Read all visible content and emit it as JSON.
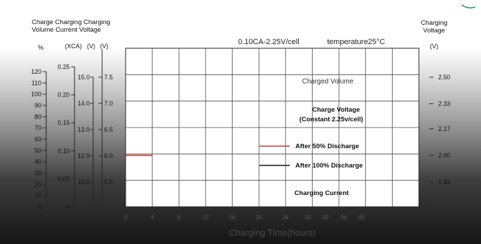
{
  "header": {
    "left_columns": "Charge Charging Charging",
    "left_columns_2": "Volume Current Voltage",
    "right_label": "Charging",
    "right_label_2": "Voltage"
  },
  "units": {
    "percent": "%",
    "xca": "(XCA)",
    "v1": "(V)",
    "v2": "(V)",
    "v_right": "(V)"
  },
  "chart_data": {
    "type": "line",
    "title": "0.10CA-2.25V/cell",
    "condition": "temperature25°C",
    "xlabel": "Charging Time(hours)",
    "xlim": [
      0,
      44
    ],
    "x_ticks": [
      {
        "v": 0,
        "label": "0"
      },
      {
        "v": 4,
        "label": "4"
      },
      {
        "v": 8,
        "label": "8"
      },
      {
        "v": 12,
        "label": "12"
      },
      {
        "v": 16,
        "label": "16"
      },
      {
        "v": 20,
        "label": "20"
      },
      {
        "v": 24,
        "label": "24"
      },
      {
        "v": 28,
        "label": "28"
      },
      {
        "v": 32,
        "label": "32"
      },
      {
        "v": 36,
        "label": "36"
      },
      {
        "v": 40,
        "label": "40"
      }
    ],
    "grid": true,
    "axes": {
      "charge_volume": {
        "range": [
          0,
          120
        ],
        "ticks": [
          0,
          10,
          20,
          30,
          40,
          50,
          60,
          70,
          80,
          90,
          100,
          110,
          120
        ]
      },
      "charging_current": {
        "range": [
          0,
          0.25
        ],
        "ticks": [
          0,
          0.05,
          0.1,
          0.15,
          0.2,
          0.25
        ]
      },
      "charging_voltage_v": {
        "range": [
          5.5,
          7.5
        ],
        "ticks": [
          5.5,
          6.0,
          6.5,
          7.0,
          7.5
        ]
      },
      "charging_voltage_inner": {
        "range": [
          11.0,
          15.0
        ],
        "ticks": [
          11.0,
          12.0,
          13.0,
          14.0,
          15.0
        ]
      },
      "charging_voltage_right": {
        "range": [
          1.83,
          2.5
        ],
        "ticks": [
          1.83,
          2.0,
          2.17,
          2.33,
          2.5
        ]
      }
    },
    "curve_labels": {
      "charged_volume": "Charged Volume",
      "charge_voltage": "Charge Voltage",
      "charge_voltage_2": "(Constant 2.25v/cell)",
      "charging_current": "Charging Current"
    },
    "series": [
      {
        "name": "After 50% Discharge",
        "color": "#c0392b",
        "x": [
          0,
          4
        ],
        "v_right": [
          2.0,
          2.0
        ]
      },
      {
        "name": "After 100% Discharge",
        "color": "#111111",
        "x": [],
        "v_right": []
      }
    ]
  }
}
